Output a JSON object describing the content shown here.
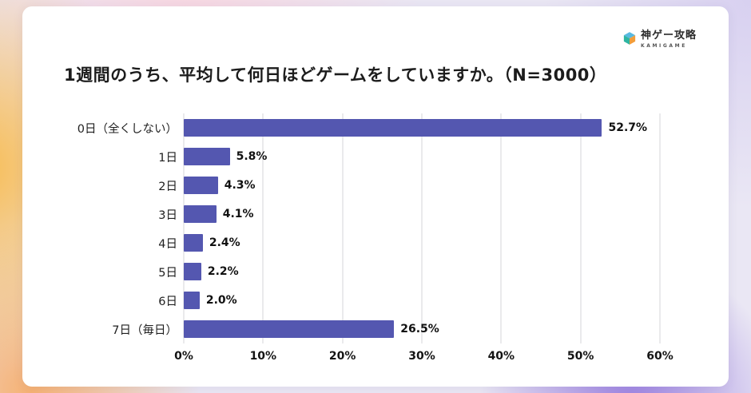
{
  "logo": {
    "brand": "神ゲー攻略",
    "sub": "KAMIGAME"
  },
  "title": "1週間のうち、平均して何日ほどゲームをしていますか。（N=3000）",
  "chart_data": {
    "type": "bar",
    "orientation": "horizontal",
    "title": "1週間のうち、平均して何日ほどゲームをしていますか。（N=3000）",
    "categories": [
      "0日（全くしない）",
      "1日",
      "2日",
      "3日",
      "4日",
      "5日",
      "6日",
      "7日（毎日）"
    ],
    "values": [
      52.7,
      5.8,
      4.3,
      4.1,
      2.4,
      2.2,
      2.0,
      26.5
    ],
    "value_labels": [
      "52.7%",
      "5.8%",
      "4.3%",
      "4.1%",
      "2.4%",
      "2.2%",
      "2.0%",
      "26.5%"
    ],
    "x_ticks": [
      "0%",
      "10%",
      "20%",
      "30%",
      "40%",
      "50%",
      "60%"
    ],
    "xlim": [
      0,
      60
    ],
    "bar_color": "#5457b0",
    "grid": true,
    "legend": "none"
  }
}
